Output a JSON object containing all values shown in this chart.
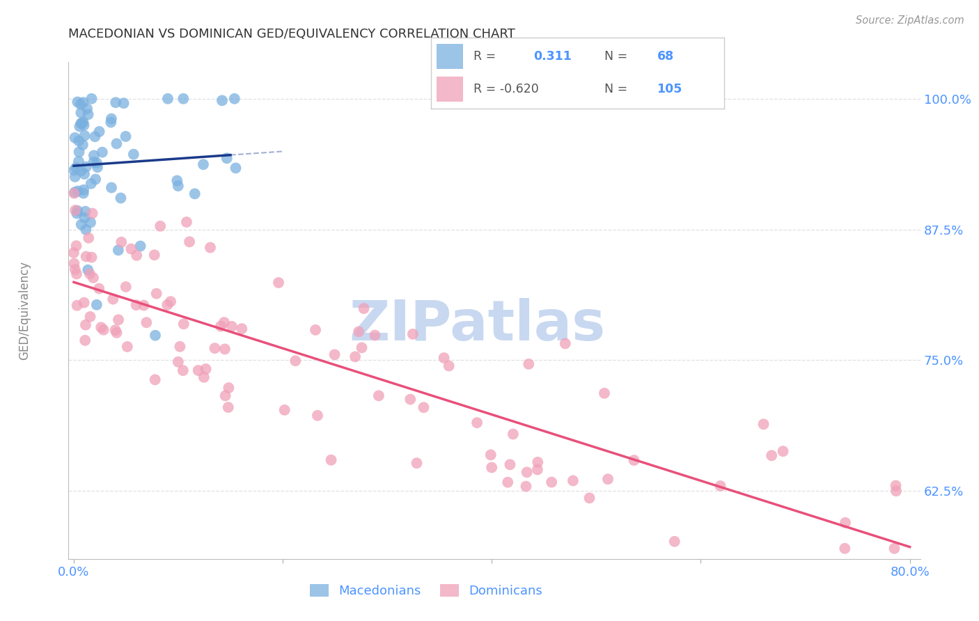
{
  "title": "MACEDONIAN VS DOMINICAN GED/EQUIVALENCY CORRELATION CHART",
  "source": "Source: ZipAtlas.com",
  "ylabel": "GED/Equivalency",
  "title_color": "#333333",
  "blue_color": "#7ab0e0",
  "pink_color": "#f0a0b8",
  "blue_line_color": "#1a3a8a",
  "pink_line_color": "#e8507a",
  "axis_color": "#4d94ff",
  "grid_color": "#dddddd",
  "background_color": "#ffffff",
  "source_color": "#999999",
  "watermark_color": "#c8d8f0",
  "ylabel_color": "#888888",
  "legend_border_color": "#cccccc",
  "legend_text_color": "#555555"
}
